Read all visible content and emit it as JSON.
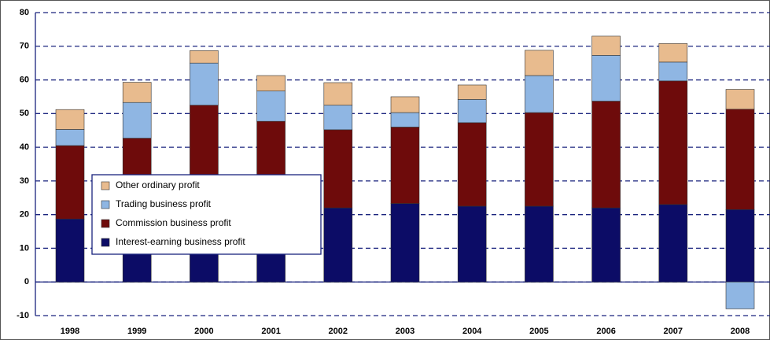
{
  "chart_data": {
    "type": "stacked_bar",
    "categories": [
      "1998",
      "1999",
      "2000",
      "2001",
      "2002",
      "2003",
      "2004",
      "2005",
      "2006",
      "2007",
      "2008"
    ],
    "series": [
      {
        "name": "Interest-earning business profit",
        "color": "#0c0c66",
        "values": [
          18.7,
          20,
          21,
          21,
          22,
          23.3,
          22.5,
          22.5,
          22,
          23,
          21.5
        ]
      },
      {
        "name": "Commission business profit",
        "color": "#6e0b0b",
        "values": [
          21.8,
          22.7,
          31.5,
          26.7,
          23.2,
          22.7,
          24.8,
          27.8,
          31.7,
          36.7,
          29.8
        ]
      },
      {
        "name": "Trading business profit",
        "color": "#8fb6e3",
        "values": [
          4.8,
          10.6,
          12.5,
          9.0,
          7.3,
          4.3,
          6.9,
          11,
          13.6,
          5.6,
          -8
        ]
      },
      {
        "name": "Other ordinary profit",
        "color": "#e8bb8e",
        "values": [
          5.9,
          6.0,
          3.7,
          4.6,
          6.7,
          4.7,
          4.3,
          7.5,
          5.7,
          5.5,
          5.9
        ]
      }
    ],
    "ylim": [
      -10,
      80
    ],
    "yticks": [
      -10,
      0,
      10,
      20,
      30,
      40,
      50,
      60,
      70,
      80
    ],
    "grid": true,
    "legend_position": "center-left",
    "legend_reversed": true
  }
}
